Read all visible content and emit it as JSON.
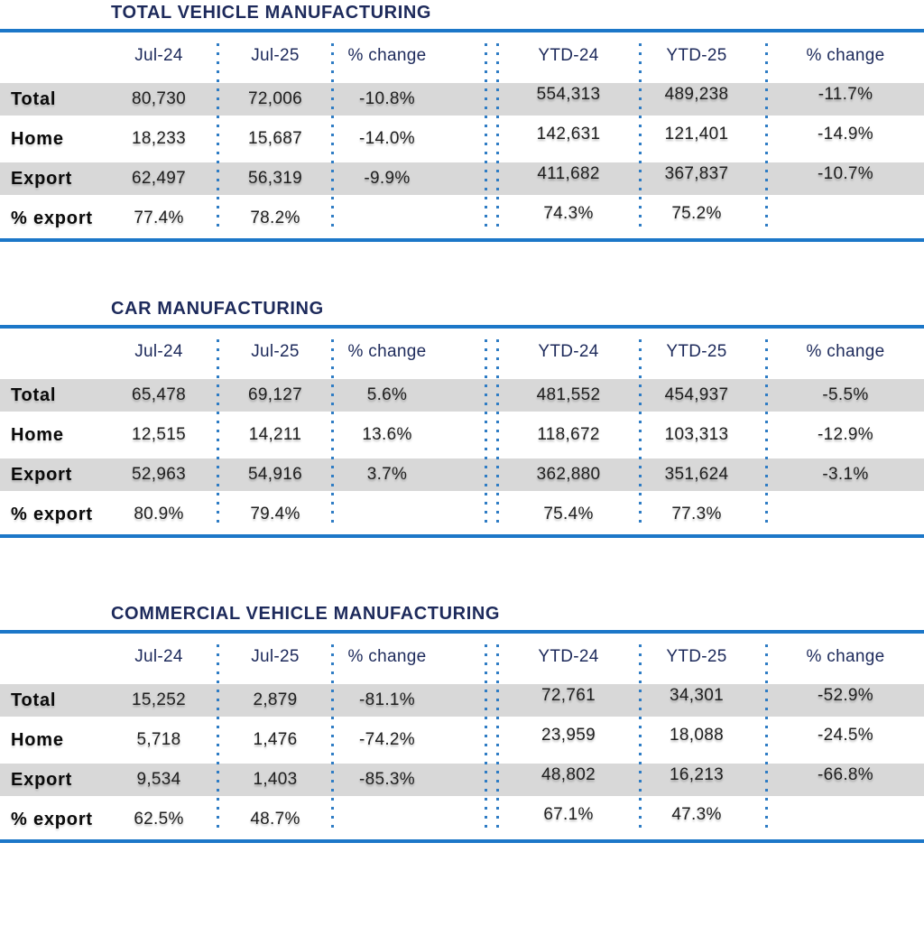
{
  "colors": {
    "title_navy": "#1d2a5b",
    "rule_blue": "#1c77c8",
    "dot_blue": "#2e7cc4",
    "band_gray": "#d8d8d8",
    "value_text": "#1f1f1f"
  },
  "tables": [
    {
      "title": "TOTAL VEHICLE MANUFACTURING",
      "columns": [
        "Jul-24",
        "Jul-25",
        "% change",
        "YTD-24",
        "YTD-25",
        "% change"
      ],
      "rows": [
        {
          "label": "Total",
          "cells": [
            "80,730",
            "72,006",
            "-10.8%",
            "554,313",
            "489,238",
            "-11.7%"
          ]
        },
        {
          "label": "Home",
          "cells": [
            "18,233",
            "15,687",
            "-14.0%",
            "142,631",
            "121,401",
            "-14.9%"
          ]
        },
        {
          "label": "Export",
          "cells": [
            "62,497",
            "56,319",
            "-9.9%",
            "411,682",
            "367,837",
            "-10.7%"
          ]
        },
        {
          "label": "% export",
          "cells": [
            "77.4%",
            "78.2%",
            "",
            "74.3%",
            "75.2%",
            ""
          ]
        }
      ]
    },
    {
      "title": "CAR MANUFACTURING",
      "columns": [
        "Jul-24",
        "Jul-25",
        "% change",
        "YTD-24",
        "YTD-25",
        "% change"
      ],
      "rows": [
        {
          "label": "Total",
          "cells": [
            "65,478",
            "69,127",
            "5.6%",
            "481,552",
            "454,937",
            "-5.5%"
          ]
        },
        {
          "label": "Home",
          "cells": [
            "12,515",
            "14,211",
            "13.6%",
            "118,672",
            "103,313",
            "-12.9%"
          ]
        },
        {
          "label": "Export",
          "cells": [
            "52,963",
            "54,916",
            "3.7%",
            "362,880",
            "351,624",
            "-3.1%"
          ]
        },
        {
          "label": "% export",
          "cells": [
            "80.9%",
            "79.4%",
            "",
            "75.4%",
            "77.3%",
            ""
          ]
        }
      ]
    },
    {
      "title": "COMMERCIAL VEHICLE MANUFACTURING",
      "columns": [
        "Jul-24",
        "Jul-25",
        "% change",
        "YTD-24",
        "YTD-25",
        "% change"
      ],
      "rows": [
        {
          "label": "Total",
          "cells": [
            "15,252",
            "2,879",
            "-81.1%",
            "72,761",
            "34,301",
            "-52.9%"
          ]
        },
        {
          "label": "Home",
          "cells": [
            "5,718",
            "1,476",
            "-74.2%",
            "23,959",
            "18,088",
            "-24.5%"
          ]
        },
        {
          "label": "Export",
          "cells": [
            "9,534",
            "1,403",
            "-85.3%",
            "48,802",
            "16,213",
            "-66.8%"
          ]
        },
        {
          "label": "% export",
          "cells": [
            "62.5%",
            "48.7%",
            "",
            "67.1%",
            "47.3%",
            ""
          ]
        }
      ]
    }
  ],
  "chart_data": [
    {
      "type": "table",
      "title": "TOTAL VEHICLE MANUFACTURING",
      "columns": [
        "Jul-24",
        "Jul-25",
        "% change",
        "YTD-24",
        "YTD-25",
        "% change"
      ],
      "rows": [
        {
          "label": "Total",
          "values": [
            80730,
            72006,
            -10.8,
            554313,
            489238,
            -11.7
          ]
        },
        {
          "label": "Home",
          "values": [
            18233,
            15687,
            -14.0,
            142631,
            121401,
            -14.9
          ]
        },
        {
          "label": "Export",
          "values": [
            62497,
            56319,
            -9.9,
            411682,
            367837,
            -10.7
          ]
        },
        {
          "label": "% export",
          "values": [
            77.4,
            78.2,
            null,
            74.3,
            75.2,
            null
          ]
        }
      ]
    },
    {
      "type": "table",
      "title": "CAR MANUFACTURING",
      "columns": [
        "Jul-24",
        "Jul-25",
        "% change",
        "YTD-24",
        "YTD-25",
        "% change"
      ],
      "rows": [
        {
          "label": "Total",
          "values": [
            65478,
            69127,
            5.6,
            481552,
            454937,
            -5.5
          ]
        },
        {
          "label": "Home",
          "values": [
            12515,
            14211,
            13.6,
            118672,
            103313,
            -12.9
          ]
        },
        {
          "label": "Export",
          "values": [
            52963,
            54916,
            3.7,
            362880,
            351624,
            -3.1
          ]
        },
        {
          "label": "% export",
          "values": [
            80.9,
            79.4,
            null,
            75.4,
            77.3,
            null
          ]
        }
      ]
    },
    {
      "type": "table",
      "title": "COMMERCIAL VEHICLE MANUFACTURING",
      "columns": [
        "Jul-24",
        "Jul-25",
        "% change",
        "YTD-24",
        "YTD-25",
        "% change"
      ],
      "rows": [
        {
          "label": "Total",
          "values": [
            15252,
            2879,
            -81.1,
            72761,
            34301,
            -52.9
          ]
        },
        {
          "label": "Home",
          "values": [
            5718,
            1476,
            -74.2,
            23959,
            18088,
            -24.5
          ]
        },
        {
          "label": "Export",
          "values": [
            9534,
            1403,
            -85.3,
            48802,
            16213,
            -66.8
          ]
        },
        {
          "label": "% export",
          "values": [
            62.5,
            48.7,
            null,
            67.1,
            47.3,
            null
          ]
        }
      ]
    }
  ]
}
